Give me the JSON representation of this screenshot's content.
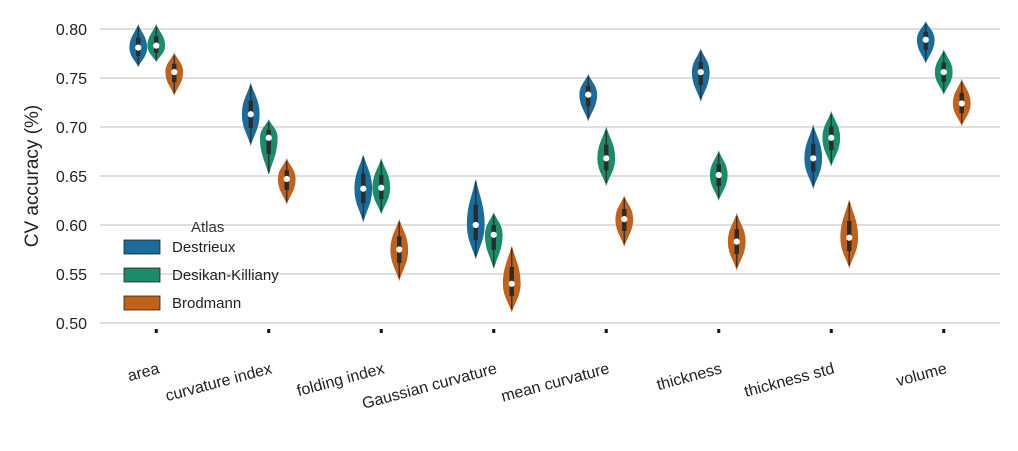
{
  "chart_data": {
    "type": "violin",
    "ylabel": "CV accuracy (%)",
    "ylim": [
      0.5,
      0.8
    ],
    "yticks": [
      "0.50",
      "0.55",
      "0.60",
      "0.65",
      "0.70",
      "0.75",
      "0.80"
    ],
    "grid": true,
    "legend": {
      "title": "Atlas",
      "placement": "middle-left"
    },
    "categories": [
      "area",
      "curvature index",
      "folding index",
      "Gaussian curvature",
      "mean curvature",
      "thickness",
      "thickness std",
      "volume"
    ],
    "series": [
      {
        "name": "Destrieux",
        "color": "#1b6c9b",
        "medians": [
          0.781,
          0.713,
          0.637,
          0.6,
          0.733,
          0.756,
          0.668,
          0.789
        ],
        "mins": [
          0.762,
          0.682,
          0.604,
          0.566,
          0.707,
          0.727,
          0.638,
          0.766
        ],
        "maxs": [
          0.804,
          0.744,
          0.671,
          0.646,
          0.753,
          0.779,
          0.701,
          0.807
        ]
      },
      {
        "name": "Desikan-Killiany",
        "color": "#1a8c6a",
        "medians": [
          0.783,
          0.689,
          0.638,
          0.59,
          0.668,
          0.651,
          0.689,
          0.756
        ],
        "mins": [
          0.767,
          0.652,
          0.612,
          0.556,
          0.641,
          0.626,
          0.661,
          0.734
        ],
        "maxs": [
          0.804,
          0.707,
          0.667,
          0.612,
          0.699,
          0.675,
          0.715,
          0.778
        ]
      },
      {
        "name": "Brodmann",
        "color": "#c0611c",
        "medians": [
          0.756,
          0.647,
          0.575,
          0.54,
          0.606,
          0.583,
          0.587,
          0.724
        ],
        "mins": [
          0.733,
          0.622,
          0.544,
          0.512,
          0.579,
          0.555,
          0.557,
          0.702
        ],
        "maxs": [
          0.775,
          0.667,
          0.605,
          0.578,
          0.629,
          0.611,
          0.625,
          0.748
        ]
      }
    ]
  }
}
